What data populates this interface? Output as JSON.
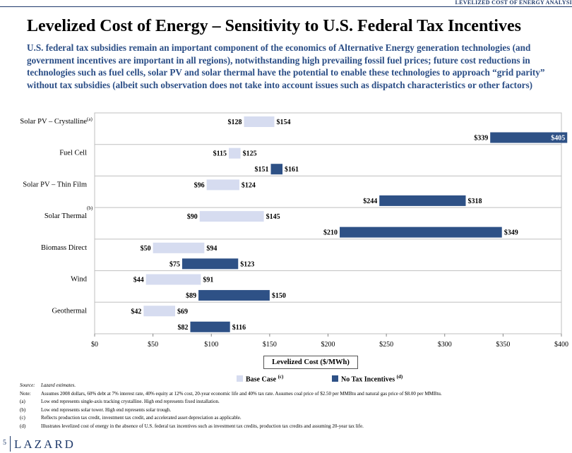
{
  "header": {
    "tag": "LEVELIZED COST OF ENERGY ANALYSI"
  },
  "title": "Levelized Cost of Energy – Sensitivity to U.S. Federal Tax Incentives",
  "subtitle": "U.S. federal tax subsidies remain an important component of the economics of Alternative Energy generation technologies (and government incentives are important in all regions), notwithstanding high prevailing fossil fuel prices; future cost reductions in technologies such as fuel cells, solar PV and solar thermal have the potential to enable these technologies to approach “grid parity” without tax subsidies (albeit such observation does not take into account issues such as dispatch characteristics or other factors)",
  "colors": {
    "base": "#d6dcf0",
    "no_tax": "#2e5186",
    "accent": "#1f3a6b"
  },
  "chart_data": {
    "type": "bar",
    "orientation": "horizontal",
    "subtype": "floating-range",
    "xlabel": "Levelized Cost ($/MWh)",
    "xlim": [
      0,
      400
    ],
    "xticks": [
      "$0",
      "$50",
      "$100",
      "$150",
      "$200",
      "$250",
      "$300",
      "$350",
      "$400"
    ],
    "xtick_values": [
      0,
      50,
      100,
      150,
      200,
      250,
      300,
      350,
      400
    ],
    "grid": "horizontal separators between categories",
    "categories": [
      {
        "label": "Solar PV – Crystalline",
        "sup": "(a)"
      },
      {
        "label": "Fuel Cell",
        "sup": ""
      },
      {
        "label": "Solar PV – Thin Film",
        "sup": ""
      },
      {
        "label": "Solar Thermal",
        "sup": "(b)"
      },
      {
        "label": "Biomass Direct",
        "sup": ""
      },
      {
        "label": "Wind",
        "sup": ""
      },
      {
        "label": "Geothermal",
        "sup": ""
      }
    ],
    "series": [
      {
        "name": "Base Case",
        "sup": "(c)",
        "low": [
          128,
          115,
          96,
          90,
          50,
          44,
          42
        ],
        "high": [
          154,
          125,
          124,
          145,
          94,
          91,
          69
        ],
        "low_labels": [
          "$128",
          "$115",
          "$96",
          "$90",
          "$50",
          "$44",
          "$42"
        ],
        "high_labels": [
          "$154",
          "$125",
          "$124",
          "$145",
          "$94",
          "$91",
          "$69"
        ]
      },
      {
        "name": "No Tax Incentives",
        "sup": "(d)",
        "low": [
          339,
          151,
          244,
          210,
          75,
          89,
          82
        ],
        "high": [
          405,
          161,
          318,
          349,
          123,
          150,
          116
        ],
        "low_labels": [
          "$339",
          "$151",
          "$244",
          "$210",
          "$75",
          "$89",
          "$82"
        ],
        "high_labels": [
          "$405",
          "$161",
          "$318",
          "$349",
          "$123",
          "$150",
          "$116"
        ]
      }
    ]
  },
  "notes": {
    "source_key": "Source:",
    "source_val": "Lazard estimates.",
    "note_key": "Note:",
    "note_val": "Assumes 2008 dollars, 60% debt at 7% interest rate, 40% equity at 12% cost, 20-year economic life and 40% tax rate. Assumes coal price of $2.50 per MMBtu and natural gas price of $8.00 per MMBtu.",
    "items": [
      {
        "key": "(a)",
        "text": "Low end represents single-axis tracking crystalline. High end represents fixed installation."
      },
      {
        "key": "(b)",
        "text": "Low end represents solar tower. High end represents solar trough."
      },
      {
        "key": "(c)",
        "text": "Reflects production tax credit, investment tax credit, and accelerated asset depreciation as applicable."
      },
      {
        "key": "(d)",
        "text": "Illustrates levelized cost of energy in the absence of U.S. federal tax incentives such as investment tax credits, production tax credits and assuming 20-year tax life."
      }
    ]
  },
  "footer": {
    "page": "5",
    "logo": "LAZARD"
  }
}
